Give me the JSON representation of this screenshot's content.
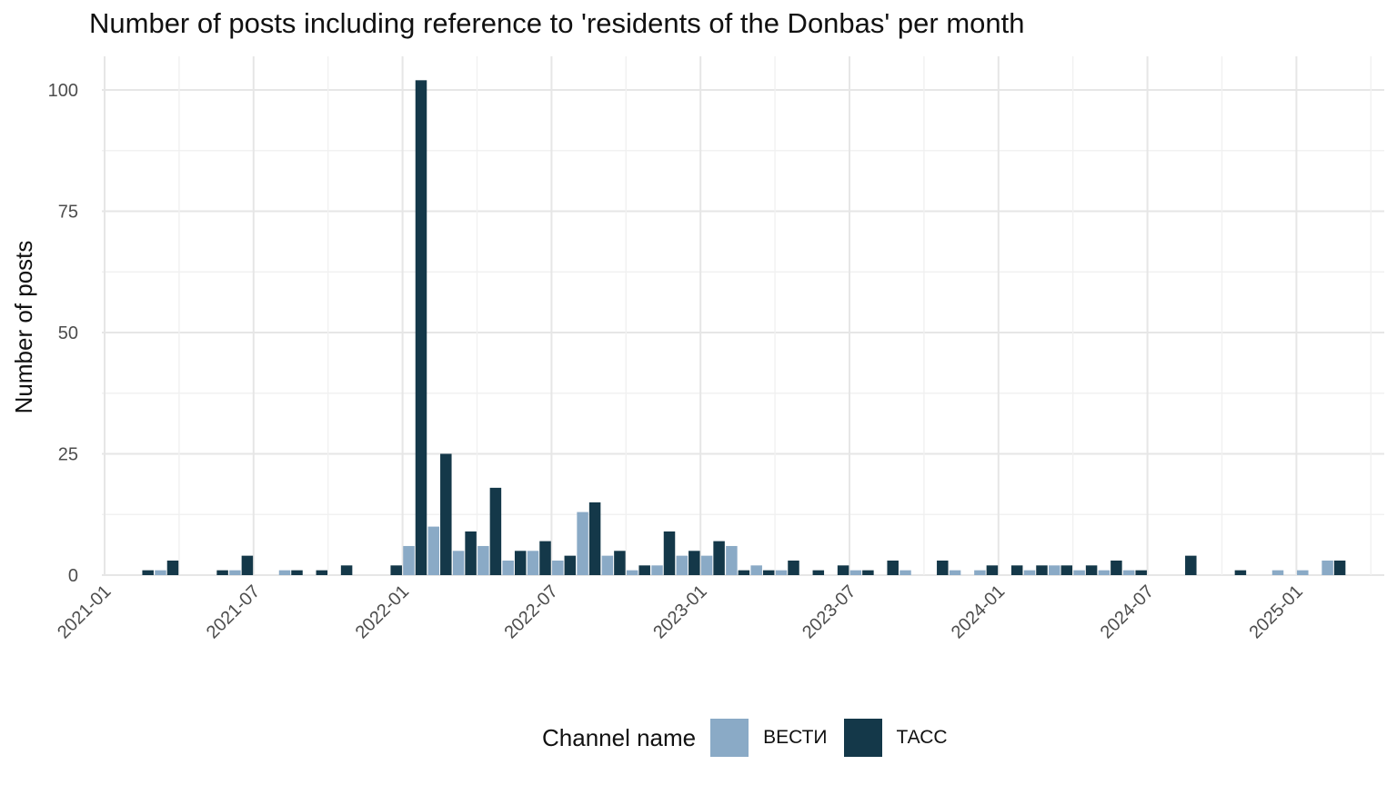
{
  "chart_data": {
    "type": "bar",
    "title": "Number of posts including reference to 'residents of the Donbas' per month",
    "xlabel": "",
    "ylabel": "Number of posts",
    "ylim": [
      0,
      107
    ],
    "yticks": [
      0,
      25,
      50,
      75,
      100
    ],
    "x_start": "2021-01",
    "x_tick_labels": [
      "2021-01",
      "2021-07",
      "2022-01",
      "2022-07",
      "2023-01",
      "2023-07",
      "2024-01",
      "2024-07",
      "2025-01"
    ],
    "months": [
      "2021-01",
      "2021-02",
      "2021-03",
      "2021-04",
      "2021-05",
      "2021-06",
      "2021-07",
      "2021-08",
      "2021-09",
      "2021-10",
      "2021-11",
      "2021-12",
      "2022-01",
      "2022-02",
      "2022-03",
      "2022-04",
      "2022-05",
      "2022-06",
      "2022-07",
      "2022-08",
      "2022-09",
      "2022-10",
      "2022-11",
      "2022-12",
      "2023-01",
      "2023-02",
      "2023-03",
      "2023-04",
      "2023-05",
      "2023-06",
      "2023-07",
      "2023-08",
      "2023-09",
      "2023-10",
      "2023-11",
      "2023-12",
      "2024-01",
      "2024-02",
      "2024-03",
      "2024-04",
      "2024-05",
      "2024-06",
      "2024-07",
      "2024-08",
      "2024-09",
      "2024-10",
      "2024-11",
      "2024-12",
      "2025-01",
      "2025-02"
    ],
    "grid": true,
    "legend_position": "bottom",
    "legend_title": "Channel name",
    "series": [
      {
        "name": "ВЕСТИ",
        "color": "#8aaac6",
        "values": [
          [
            "2021-03",
            1
          ],
          [
            "2021-06",
            1
          ],
          [
            "2021-08",
            1
          ],
          [
            "2022-01",
            6
          ],
          [
            "2022-02",
            10
          ],
          [
            "2022-03",
            5
          ],
          [
            "2022-04",
            6
          ],
          [
            "2022-05",
            3
          ],
          [
            "2022-06",
            5
          ],
          [
            "2022-07",
            3
          ],
          [
            "2022-08",
            13
          ],
          [
            "2022-09",
            4
          ],
          [
            "2022-10",
            1
          ],
          [
            "2022-11",
            2
          ],
          [
            "2022-12",
            4
          ],
          [
            "2023-01",
            4
          ],
          [
            "2023-02",
            6
          ],
          [
            "2023-03",
            2
          ],
          [
            "2023-04",
            1
          ],
          [
            "2023-07",
            1
          ],
          [
            "2023-09",
            1
          ],
          [
            "2023-11",
            1
          ],
          [
            "2023-12",
            1
          ],
          [
            "2024-02",
            1
          ],
          [
            "2024-03",
            2
          ],
          [
            "2024-04",
            1
          ],
          [
            "2024-05",
            1
          ],
          [
            "2024-06",
            1
          ],
          [
            "2024-12",
            1
          ],
          [
            "2025-01",
            1
          ],
          [
            "2025-02",
            3
          ]
        ]
      },
      {
        "name": "ТАСС",
        "color": "#143849",
        "values": [
          [
            "2021-02",
            1
          ],
          [
            "2021-03",
            3
          ],
          [
            "2021-05",
            1
          ],
          [
            "2021-06",
            4
          ],
          [
            "2021-08",
            1
          ],
          [
            "2021-09",
            1
          ],
          [
            "2021-10",
            2
          ],
          [
            "2021-12",
            2
          ],
          [
            "2022-01",
            102
          ],
          [
            "2022-02",
            25
          ],
          [
            "2022-03",
            9
          ],
          [
            "2022-04",
            18
          ],
          [
            "2022-05",
            5
          ],
          [
            "2022-06",
            7
          ],
          [
            "2022-07",
            4
          ],
          [
            "2022-08",
            15
          ],
          [
            "2022-09",
            5
          ],
          [
            "2022-10",
            2
          ],
          [
            "2022-11",
            9
          ],
          [
            "2022-12",
            5
          ],
          [
            "2023-01",
            7
          ],
          [
            "2023-02",
            1
          ],
          [
            "2023-03",
            1
          ],
          [
            "2023-04",
            3
          ],
          [
            "2023-05",
            1
          ],
          [
            "2023-06",
            2
          ],
          [
            "2023-07",
            1
          ],
          [
            "2023-08",
            3
          ],
          [
            "2023-10",
            3
          ],
          [
            "2023-12",
            2
          ],
          [
            "2024-01",
            2
          ],
          [
            "2024-02",
            2
          ],
          [
            "2024-03",
            2
          ],
          [
            "2024-04",
            2
          ],
          [
            "2024-05",
            3
          ],
          [
            "2024-06",
            1
          ],
          [
            "2024-08",
            4
          ],
          [
            "2024-10",
            1
          ],
          [
            "2025-02",
            3
          ]
        ]
      }
    ]
  }
}
